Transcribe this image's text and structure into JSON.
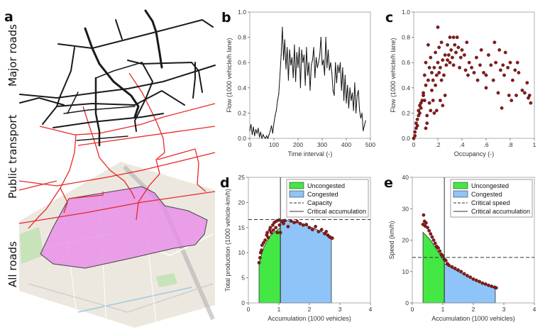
{
  "panel_a": {
    "label": "a",
    "layers": [
      "Major roads",
      "Public transport",
      "All roads"
    ],
    "colors": {
      "roads": "#1a1a1a",
      "transit": "#e8282a",
      "region": "#e98be8",
      "map": "#ece8df"
    }
  },
  "chart_data": [
    {
      "panel": "b",
      "type": "line",
      "xlabel": "Time interval (-)",
      "ylabel": "Flow (1000 vehicle/h lane)",
      "xlim": [
        0,
        500
      ],
      "ylim": [
        0,
        1
      ],
      "xticks": [
        "0",
        "100",
        "200",
        "300",
        "400",
        "500"
      ],
      "yticks": [
        "0.0",
        "0.2",
        "0.4",
        "0.6",
        "0.8",
        "1.0"
      ],
      "grid": false,
      "color": "#111111",
      "x": [
        0,
        5,
        10,
        15,
        20,
        25,
        30,
        35,
        40,
        45,
        50,
        55,
        60,
        65,
        70,
        75,
        80,
        85,
        90,
        95,
        100,
        105,
        110,
        115,
        120,
        125,
        130,
        135,
        140,
        145,
        150,
        155,
        160,
        165,
        170,
        175,
        180,
        185,
        190,
        195,
        200,
        205,
        210,
        215,
        220,
        225,
        230,
        235,
        240,
        245,
        250,
        255,
        260,
        265,
        270,
        275,
        280,
        285,
        290,
        295,
        300,
        305,
        310,
        315,
        320,
        325,
        330,
        335,
        340,
        345,
        350,
        355,
        360,
        365,
        370,
        375,
        380,
        385,
        390,
        395,
        400,
        405,
        410,
        415,
        420,
        425,
        430,
        435,
        440,
        445,
        450,
        455,
        460,
        465,
        470,
        475,
        480
      ],
      "y": [
        0.06,
        0.11,
        0.03,
        0.09,
        0.02,
        0.07,
        0.04,
        0.08,
        0.01,
        0.05,
        0.0,
        0.03,
        0.01,
        0.0,
        0.02,
        0.0,
        0.03,
        0.06,
        0.1,
        0.04,
        0.12,
        0.18,
        0.22,
        0.3,
        0.35,
        0.5,
        0.66,
        0.88,
        0.62,
        0.78,
        0.55,
        0.72,
        0.46,
        0.7,
        0.58,
        0.64,
        0.48,
        0.74,
        0.45,
        0.68,
        0.56,
        0.72,
        0.4,
        0.7,
        0.6,
        0.66,
        0.42,
        0.72,
        0.5,
        0.6,
        0.38,
        0.58,
        0.62,
        0.72,
        0.48,
        0.64,
        0.56,
        0.6,
        0.66,
        0.8,
        0.58,
        0.62,
        0.5,
        0.8,
        0.56,
        0.7,
        0.54,
        0.6,
        0.52,
        0.38,
        0.34,
        0.6,
        0.44,
        0.58,
        0.52,
        0.6,
        0.38,
        0.56,
        0.3,
        0.5,
        0.28,
        0.42,
        0.24,
        0.4,
        0.3,
        0.36,
        0.22,
        0.44,
        0.2,
        0.34,
        0.38,
        0.22,
        0.16,
        0.2,
        0.06,
        0.1,
        0.14
      ]
    },
    {
      "panel": "c",
      "type": "scatter",
      "xlabel": "Occupancy (-)",
      "ylabel": "Flow (1000 vehicle/h lane)",
      "xlim": [
        0,
        1
      ],
      "ylim": [
        0,
        1
      ],
      "xticks": [
        "0",
        ".2",
        ".4",
        ".6",
        ".8",
        "1"
      ],
      "yticks": [
        "0.0",
        "0.2",
        "0.4",
        "0.6",
        "0.8",
        "1.0"
      ],
      "grid": false,
      "color": "#8b1a1a",
      "points": [
        [
          0,
          0
        ],
        [
          0.01,
          0.02
        ],
        [
          0.01,
          0.05
        ],
        [
          0.02,
          0.08
        ],
        [
          0.02,
          0.12
        ],
        [
          0.03,
          0.1
        ],
        [
          0.03,
          0.15
        ],
        [
          0.04,
          0.18
        ],
        [
          0.04,
          0.22
        ],
        [
          0.05,
          0.2
        ],
        [
          0.05,
          0.26
        ],
        [
          0.06,
          0.28
        ],
        [
          0.06,
          0.24
        ],
        [
          0.07,
          0.3
        ],
        [
          0.08,
          0.34
        ],
        [
          0.08,
          0.36
        ],
        [
          0.09,
          0.3
        ],
        [
          0.09,
          0.5
        ],
        [
          0.1,
          0.42
        ],
        [
          0.1,
          0.08
        ],
        [
          0.1,
          0.6
        ],
        [
          0.11,
          0.18
        ],
        [
          0.11,
          0.12
        ],
        [
          0.12,
          0.74
        ],
        [
          0.12,
          0.46
        ],
        [
          0.13,
          0.28
        ],
        [
          0.13,
          0.56
        ],
        [
          0.14,
          0.22
        ],
        [
          0.14,
          0.64
        ],
        [
          0.15,
          0.38
        ],
        [
          0.15,
          0.52
        ],
        [
          0.16,
          0.3
        ],
        [
          0.16,
          0.46
        ],
        [
          0.17,
          0.56
        ],
        [
          0.17,
          0.2
        ],
        [
          0.18,
          0.68
        ],
        [
          0.18,
          0.42
        ],
        [
          0.19,
          0.5
        ],
        [
          0.19,
          0.22
        ],
        [
          0.2,
          0.88
        ],
        [
          0.2,
          0.6
        ],
        [
          0.21,
          0.52
        ],
        [
          0.21,
          0.72
        ],
        [
          0.22,
          0.3
        ],
        [
          0.22,
          0.56
        ],
        [
          0.23,
          0.76
        ],
        [
          0.23,
          0.46
        ],
        [
          0.24,
          0.26
        ],
        [
          0.24,
          0.62
        ],
        [
          0.25,
          0.5
        ],
        [
          0.26,
          0.66
        ],
        [
          0.26,
          0.34
        ],
        [
          0.27,
          0.58
        ],
        [
          0.28,
          0.74
        ],
        [
          0.28,
          0.62
        ],
        [
          0.29,
          0.66
        ],
        [
          0.3,
          0.8
        ],
        [
          0.3,
          0.6
        ],
        [
          0.31,
          0.7
        ],
        [
          0.32,
          0.64
        ],
        [
          0.33,
          0.8
        ],
        [
          0.33,
          0.58
        ],
        [
          0.34,
          0.74
        ],
        [
          0.35,
          0.68
        ],
        [
          0.36,
          0.8
        ],
        [
          0.37,
          0.72
        ],
        [
          0.38,
          0.56
        ],
        [
          0.39,
          0.64
        ],
        [
          0.4,
          0.7
        ],
        [
          0.42,
          0.66
        ],
        [
          0.43,
          0.54
        ],
        [
          0.44,
          0.76
        ],
        [
          0.45,
          0.5
        ],
        [
          0.46,
          0.6
        ],
        [
          0.48,
          0.56
        ],
        [
          0.5,
          0.52
        ],
        [
          0.52,
          0.64
        ],
        [
          0.53,
          0.46
        ],
        [
          0.55,
          0.58
        ],
        [
          0.56,
          0.7
        ],
        [
          0.58,
          0.52
        ],
        [
          0.6,
          0.5
        ],
        [
          0.6,
          0.4
        ],
        [
          0.62,
          0.66
        ],
        [
          0.64,
          0.58
        ],
        [
          0.66,
          0.46
        ],
        [
          0.67,
          0.76
        ],
        [
          0.68,
          0.6
        ],
        [
          0.7,
          0.36
        ],
        [
          0.71,
          0.7
        ],
        [
          0.72,
          0.54
        ],
        [
          0.73,
          0.24
        ],
        [
          0.74,
          0.58
        ],
        [
          0.75,
          0.5
        ],
        [
          0.76,
          0.68
        ],
        [
          0.78,
          0.56
        ],
        [
          0.79,
          0.34
        ],
        [
          0.8,
          0.6
        ],
        [
          0.81,
          0.3
        ],
        [
          0.82,
          0.46
        ],
        [
          0.84,
          0.54
        ],
        [
          0.85,
          0.34
        ],
        [
          0.86,
          0.6
        ],
        [
          0.87,
          0.52
        ],
        [
          0.9,
          0.38
        ],
        [
          0.92,
          0.36
        ],
        [
          0.94,
          0.44
        ],
        [
          0.95,
          0.32
        ],
        [
          0.96,
          0.34
        ],
        [
          0.97,
          0.28
        ]
      ]
    },
    {
      "panel": "d",
      "type": "scatter",
      "xlabel": "Accumulation (1000 vehicles)",
      "ylabel": "Total production (1000 vehicle-km/h)",
      "xlim": [
        0,
        4
      ],
      "ylim": [
        0,
        25
      ],
      "xticks": [
        "0",
        "1",
        "2",
        "3",
        "4"
      ],
      "yticks": [
        "0",
        "5",
        "10",
        "15",
        "20",
        "25"
      ],
      "grid": false,
      "legend": {
        "position": "top-right",
        "entries": [
          "Uncongested",
          "Congested",
          "Capacity",
          "Critical accumulation"
        ]
      },
      "reference_lines": {
        "horizontal": 16.6,
        "vertical": 1.05
      },
      "regions": {
        "uncongested": {
          "color": "#44e844",
          "boundary": [
            [
              0.35,
              8
            ],
            [
              0.5,
              11
            ],
            [
              0.7,
              13.3
            ],
            [
              0.9,
              14.3
            ],
            [
              1.05,
              15
            ]
          ]
        },
        "congested": {
          "color": "#8fc4f8",
          "boundary": [
            [
              1.05,
              16.6
            ],
            [
              1.5,
              16.2
            ],
            [
              2.0,
              15.2
            ],
            [
              2.4,
              14.2
            ],
            [
              2.72,
              13
            ]
          ]
        }
      },
      "color": "#8b1a1a",
      "points": [
        [
          0.35,
          8
        ],
        [
          0.38,
          9
        ],
        [
          0.4,
          10
        ],
        [
          0.43,
          10.5
        ],
        [
          0.45,
          11.5
        ],
        [
          0.5,
          12
        ],
        [
          0.55,
          12.5
        ],
        [
          0.6,
          13.5
        ],
        [
          0.62,
          14
        ],
        [
          0.65,
          13
        ],
        [
          0.7,
          14.5
        ],
        [
          0.72,
          15
        ],
        [
          0.75,
          14
        ],
        [
          0.8,
          15.5
        ],
        [
          0.82,
          14.5
        ],
        [
          0.85,
          16
        ],
        [
          0.9,
          15
        ],
        [
          0.92,
          16.3
        ],
        [
          0.95,
          14
        ],
        [
          1.0,
          16.5
        ],
        [
          1.02,
          15.5
        ],
        [
          1.05,
          14
        ],
        [
          1.1,
          16.2
        ],
        [
          1.15,
          15.8
        ],
        [
          1.2,
          16.4
        ],
        [
          1.3,
          15.2
        ],
        [
          1.4,
          16.3
        ],
        [
          1.5,
          16
        ],
        [
          1.6,
          16.2
        ],
        [
          1.7,
          15.8
        ],
        [
          1.8,
          15.5
        ],
        [
          1.9,
          15.6
        ],
        [
          2.0,
          15
        ],
        [
          2.1,
          14.6
        ],
        [
          2.2,
          15.2
        ],
        [
          2.3,
          14.2
        ],
        [
          2.4,
          14.6
        ],
        [
          2.5,
          13.8
        ],
        [
          2.55,
          14.2
        ],
        [
          2.6,
          13.5
        ],
        [
          2.65,
          13.2
        ],
        [
          2.7,
          13
        ],
        [
          2.75,
          12.9
        ]
      ]
    },
    {
      "panel": "e",
      "type": "scatter",
      "xlabel": "Accumulation (1000 vehicles)",
      "ylabel": "Speed (km/h)",
      "xlim": [
        0,
        4
      ],
      "ylim": [
        0,
        40
      ],
      "xticks": [
        "0",
        "1",
        "2",
        "3",
        "4"
      ],
      "yticks": [
        "0",
        "10",
        "20",
        "30",
        "40"
      ],
      "grid": false,
      "legend": {
        "position": "top-right",
        "entries": [
          "Uncongested",
          "Congested",
          "Critical speed",
          "Critical accumulation"
        ]
      },
      "reference_lines": {
        "horizontal": 14.5,
        "vertical": 1.05
      },
      "regions": {
        "uncongested": {
          "color": "#44e844",
          "boundary": [
            [
              0.35,
              22.5
            ],
            [
              0.6,
              20
            ],
            [
              0.8,
              17
            ],
            [
              1.05,
              13
            ]
          ]
        },
        "congested": {
          "color": "#8fc4f8",
          "boundary": [
            [
              1.05,
              12.5
            ],
            [
              1.5,
              10
            ],
            [
              2.0,
              7.5
            ],
            [
              2.4,
              6
            ],
            [
              2.72,
              4.5
            ]
          ]
        }
      },
      "color": "#8b1a1a",
      "points": [
        [
          0.35,
          25
        ],
        [
          0.37,
          28
        ],
        [
          0.4,
          26
        ],
        [
          0.42,
          24.5
        ],
        [
          0.45,
          25.5
        ],
        [
          0.5,
          24
        ],
        [
          0.55,
          23
        ],
        [
          0.6,
          22
        ],
        [
          0.65,
          21
        ],
        [
          0.7,
          20
        ],
        [
          0.75,
          19
        ],
        [
          0.8,
          18
        ],
        [
          0.85,
          17.5
        ],
        [
          0.9,
          16.5
        ],
        [
          0.95,
          15.5
        ],
        [
          1.0,
          15
        ],
        [
          1.05,
          14
        ],
        [
          1.1,
          13.5
        ],
        [
          1.15,
          12.5
        ],
        [
          1.2,
          12
        ],
        [
          1.3,
          11.5
        ],
        [
          1.4,
          11
        ],
        [
          1.5,
          10.5
        ],
        [
          1.6,
          10
        ],
        [
          1.7,
          9.3
        ],
        [
          1.8,
          8.7
        ],
        [
          1.9,
          8.2
        ],
        [
          2.0,
          7.6
        ],
        [
          2.1,
          7.2
        ],
        [
          2.2,
          6.8
        ],
        [
          2.3,
          6.3
        ],
        [
          2.4,
          6
        ],
        [
          2.5,
          5.6
        ],
        [
          2.6,
          5.3
        ],
        [
          2.7,
          5
        ],
        [
          2.75,
          4.8
        ]
      ]
    }
  ]
}
